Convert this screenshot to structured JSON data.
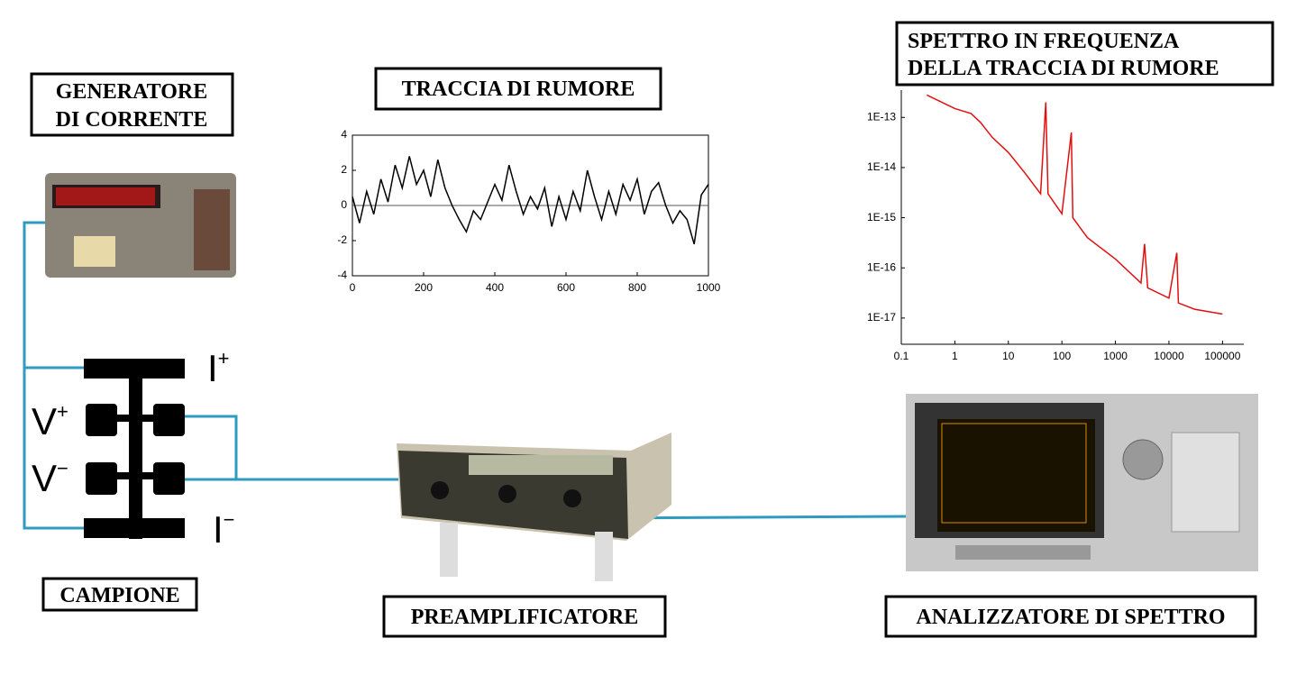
{
  "generator_label": [
    "GENERATORE",
    "DI CORRENTE"
  ],
  "noise_label": "TRACCIA DI RUMORE",
  "spectrum_label": [
    "SPETTRO IN FREQUENZA",
    "DELLA TRACCIA DI RUMORE"
  ],
  "sample_label": "CAMPIONE",
  "preamp_label": "PREAMPLIFICATORE",
  "analyzer_label": "ANALIZZATORE DI SPETTRO",
  "sample_pins": [
    {
      "base": "I",
      "sup": "+"
    },
    {
      "base": "V",
      "sup": "+"
    },
    {
      "base": "V",
      "sup": "−"
    },
    {
      "base": "I",
      "sup": "−"
    }
  ],
  "noise": {
    "type": "line",
    "color": "#000000",
    "zero_line": true,
    "xlim": [
      0,
      1000
    ],
    "ylim": [
      -4,
      4
    ],
    "xticks": [
      0,
      200,
      400,
      600,
      800,
      1000
    ],
    "yticks": [
      -4,
      -2,
      0,
      2,
      4
    ],
    "x": [
      0,
      20,
      40,
      60,
      80,
      100,
      120,
      140,
      160,
      180,
      200,
      220,
      240,
      260,
      280,
      300,
      320,
      340,
      360,
      380,
      400,
      420,
      440,
      460,
      480,
      500,
      520,
      540,
      560,
      580,
      600,
      620,
      640,
      660,
      680,
      700,
      720,
      740,
      760,
      780,
      800,
      820,
      840,
      860,
      880,
      900,
      920,
      940,
      960,
      980,
      1000
    ],
    "values": [
      0.5,
      -1,
      0.8,
      -0.5,
      1.5,
      0.2,
      2.3,
      1.0,
      2.8,
      1.2,
      2.0,
      0.5,
      2.6,
      1.0,
      0.0,
      -0.8,
      -1.5,
      -0.3,
      -0.8,
      0.2,
      1.2,
      0.3,
      2.3,
      0.8,
      -0.5,
      0.5,
      -0.2,
      1.0,
      -1.2,
      0.5,
      -0.8,
      0.8,
      -0.3,
      2.0,
      0.5,
      -0.8,
      0.8,
      -0.5,
      1.2,
      0.3,
      1.5,
      -0.5,
      0.8,
      1.3,
      0.0,
      -1.0,
      -0.3,
      -0.8,
      -2.2,
      0.6,
      1.2
    ]
  },
  "spectrum": {
    "type": "line",
    "color": "#e01010",
    "log_x": true,
    "log_y": true,
    "xlim": [
      0.1,
      250000
    ],
    "ylim": [
      3e-18,
      3.5e-13
    ],
    "xticks": [
      0.1,
      1,
      10,
      100,
      1000,
      10000,
      100000
    ],
    "yticks": [
      {
        "value": 1e-13,
        "label": "1E-13"
      },
      {
        "value": 1e-14,
        "label": "1E-14"
      },
      {
        "value": 1e-15,
        "label": "1E-15"
      },
      {
        "value": 1e-16,
        "label": "1E-16"
      },
      {
        "value": 1e-17,
        "label": "1E-17"
      }
    ],
    "x": [
      0.3,
      1,
      2,
      3,
      5,
      10,
      20,
      40,
      50,
      55,
      100,
      150,
      160,
      300,
      1000,
      3000,
      3500,
      4000,
      10000,
      14000,
      15000,
      30000,
      100000
    ],
    "values": [
      2.8e-13,
      1.5e-13,
      1.2e-13,
      8e-14,
      4e-14,
      2e-14,
      8e-15,
      3e-15,
      2e-13,
      3e-15,
      1.2e-15,
      5e-14,
      1e-15,
      4e-16,
      1.5e-16,
      5e-17,
      3e-16,
      4e-17,
      2.5e-17,
      2e-16,
      2e-17,
      1.5e-17,
      1.2e-17
    ]
  }
}
